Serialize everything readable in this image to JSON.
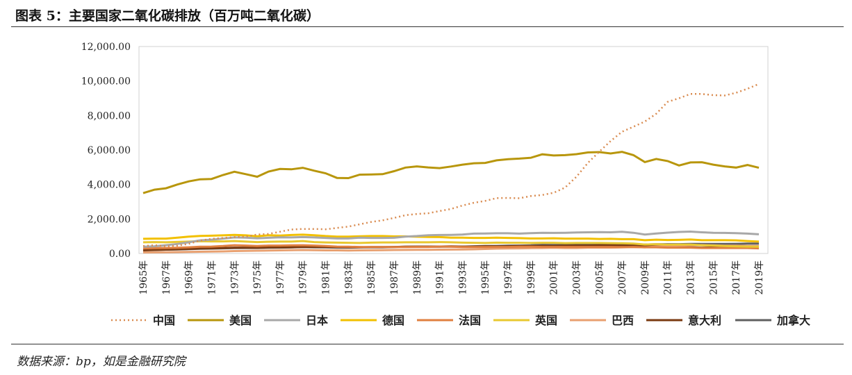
{
  "header": {
    "title": "图表 5：主要国家二氧化碳排放（百万吨二氧化碳）"
  },
  "footer": {
    "source": "数据来源：bp，如是金融研究院"
  },
  "chart_data": {
    "type": "line",
    "title": "主要国家二氧化碳排放（百万吨二氧化碳）",
    "xlabel": "",
    "ylabel": "",
    "ylim": [
      0,
      12000
    ],
    "yticks": [
      "0.00",
      "2,000.00",
      "4,000.00",
      "6,000.00",
      "8,000.00",
      "10,000.00",
      "12,000.00"
    ],
    "x_start": 1965,
    "x_end": 2019,
    "xtick_labels": [
      "1965年",
      "1967年",
      "1969年",
      "1971年",
      "1973年",
      "1975年",
      "1977年",
      "1979年",
      "1981年",
      "1983年",
      "1985年",
      "1987年",
      "1989年",
      "1991年",
      "1993年",
      "1995年",
      "1997年",
      "1999年",
      "2001年",
      "2003年",
      "2005年",
      "2007年",
      "2009年",
      "2011年",
      "2013年",
      "2015年",
      "2017年",
      "2019年"
    ],
    "legend_position": "bottom",
    "grid": false,
    "series": [
      {
        "name": "中国",
        "color": "#d98b50",
        "dash": true,
        "values": [
          430,
          480,
          420,
          450,
          560,
          750,
          850,
          900,
          950,
          980,
          1100,
          1130,
          1260,
          1390,
          1420,
          1420,
          1400,
          1480,
          1560,
          1690,
          1830,
          1920,
          2060,
          2220,
          2290,
          2330,
          2460,
          2580,
          2780,
          2940,
          3050,
          3210,
          3220,
          3200,
          3330,
          3390,
          3520,
          3820,
          4450,
          5250,
          5900,
          6520,
          7060,
          7350,
          7650,
          8100,
          8790,
          9000,
          9250,
          9250,
          9180,
          9160,
          9320,
          9550,
          9830
        ]
      },
      {
        "name": "美国",
        "color": "#b8960c",
        "values": [
          3500,
          3700,
          3780,
          4000,
          4180,
          4300,
          4320,
          4550,
          4740,
          4600,
          4450,
          4750,
          4900,
          4880,
          4970,
          4800,
          4650,
          4380,
          4370,
          4570,
          4580,
          4600,
          4770,
          4980,
          5050,
          4990,
          4950,
          5040,
          5150,
          5230,
          5250,
          5400,
          5470,
          5500,
          5550,
          5750,
          5680,
          5700,
          5760,
          5860,
          5880,
          5800,
          5890,
          5700,
          5300,
          5480,
          5360,
          5100,
          5280,
          5290,
          5150,
          5050,
          4980,
          5130,
          4970
        ]
      },
      {
        "name": "日本",
        "color": "#a8a8a8",
        "values": [
          390,
          420,
          480,
          550,
          650,
          760,
          800,
          860,
          930,
          920,
          880,
          910,
          940,
          930,
          950,
          930,
          900,
          870,
          870,
          920,
          900,
          900,
          910,
          980,
          1010,
          1060,
          1070,
          1080,
          1100,
          1150,
          1160,
          1170,
          1170,
          1150,
          1180,
          1200,
          1190,
          1200,
          1220,
          1230,
          1240,
          1230,
          1260,
          1200,
          1100,
          1160,
          1210,
          1250,
          1270,
          1230,
          1200,
          1190,
          1180,
          1150,
          1110
        ]
      },
      {
        "name": "德国",
        "color": "#f2c000",
        "values": [
          850,
          860,
          860,
          920,
          980,
          1020,
          1030,
          1050,
          1080,
          1050,
          1000,
          1060,
          1040,
          1070,
          1090,
          1060,
          1010,
          980,
          980,
          1000,
          1010,
          1010,
          990,
          990,
          970,
          960,
          950,
          920,
          920,
          900,
          900,
          920,
          900,
          890,
          870,
          870,
          880,
          860,
          860,
          860,
          840,
          850,
          830,
          830,
          770,
          800,
          780,
          790,
          810,
          770,
          770,
          770,
          760,
          720,
          690
        ]
      },
      {
        "name": "法国",
        "color": "#e08040",
        "values": [
          300,
          310,
          320,
          330,
          360,
          390,
          400,
          430,
          480,
          460,
          430,
          460,
          460,
          470,
          480,
          460,
          430,
          400,
          390,
          380,
          370,
          370,
          370,
          370,
          380,
          380,
          400,
          390,
          370,
          370,
          370,
          380,
          380,
          390,
          390,
          380,
          380,
          380,
          380,
          380,
          380,
          380,
          370,
          370,
          360,
          360,
          340,
          340,
          340,
          320,
          320,
          320,
          320,
          320,
          300
        ]
      },
      {
        "name": "英国",
        "color": "#e8c830",
        "values": [
          650,
          660,
          650,
          670,
          690,
          710,
          700,
          700,
          720,
          690,
          660,
          680,
          690,
          690,
          720,
          660,
          640,
          630,
          620,
          610,
          630,
          640,
          640,
          650,
          650,
          650,
          660,
          650,
          630,
          620,
          610,
          630,
          620,
          620,
          610,
          620,
          620,
          600,
          610,
          610,
          610,
          600,
          590,
          570,
          520,
          540,
          510,
          520,
          520,
          480,
          460,
          430,
          410,
          400,
          390
        ]
      },
      {
        "name": "巴西",
        "color": "#e8a070",
        "values": [
          60,
          65,
          70,
          80,
          90,
          100,
          110,
          120,
          140,
          150,
          160,
          170,
          180,
          190,
          200,
          190,
          180,
          180,
          175,
          180,
          185,
          195,
          200,
          205,
          210,
          210,
          220,
          225,
          230,
          240,
          260,
          280,
          290,
          300,
          310,
          320,
          330,
          320,
          320,
          340,
          340,
          340,
          350,
          370,
          360,
          400,
          420,
          450,
          470,
          490,
          470,
          450,
          450,
          440,
          440
        ]
      },
      {
        "name": "意大利",
        "color": "#7a3a10",
        "values": [
          180,
          200,
          220,
          240,
          260,
          290,
          300,
          320,
          340,
          340,
          330,
          350,
          350,
          360,
          380,
          380,
          370,
          370,
          360,
          360,
          370,
          370,
          380,
          390,
          400,
          400,
          400,
          410,
          400,
          400,
          420,
          410,
          420,
          430,
          430,
          440,
          440,
          450,
          460,
          460,
          470,
          470,
          460,
          450,
          410,
          420,
          410,
          380,
          360,
          340,
          350,
          350,
          340,
          340,
          330
        ]
      },
      {
        "name": "加拿大",
        "color": "#606060",
        "values": [
          200,
          210,
          220,
          230,
          250,
          270,
          280,
          300,
          310,
          320,
          320,
          330,
          340,
          350,
          370,
          360,
          350,
          340,
          340,
          350,
          350,
          350,
          370,
          390,
          400,
          400,
          390,
          400,
          400,
          420,
          430,
          440,
          450,
          460,
          470,
          500,
          490,
          500,
          520,
          520,
          530,
          540,
          560,
          540,
          520,
          530,
          540,
          540,
          550,
          550,
          550,
          550,
          560,
          570,
          570
        ]
      }
    ]
  }
}
